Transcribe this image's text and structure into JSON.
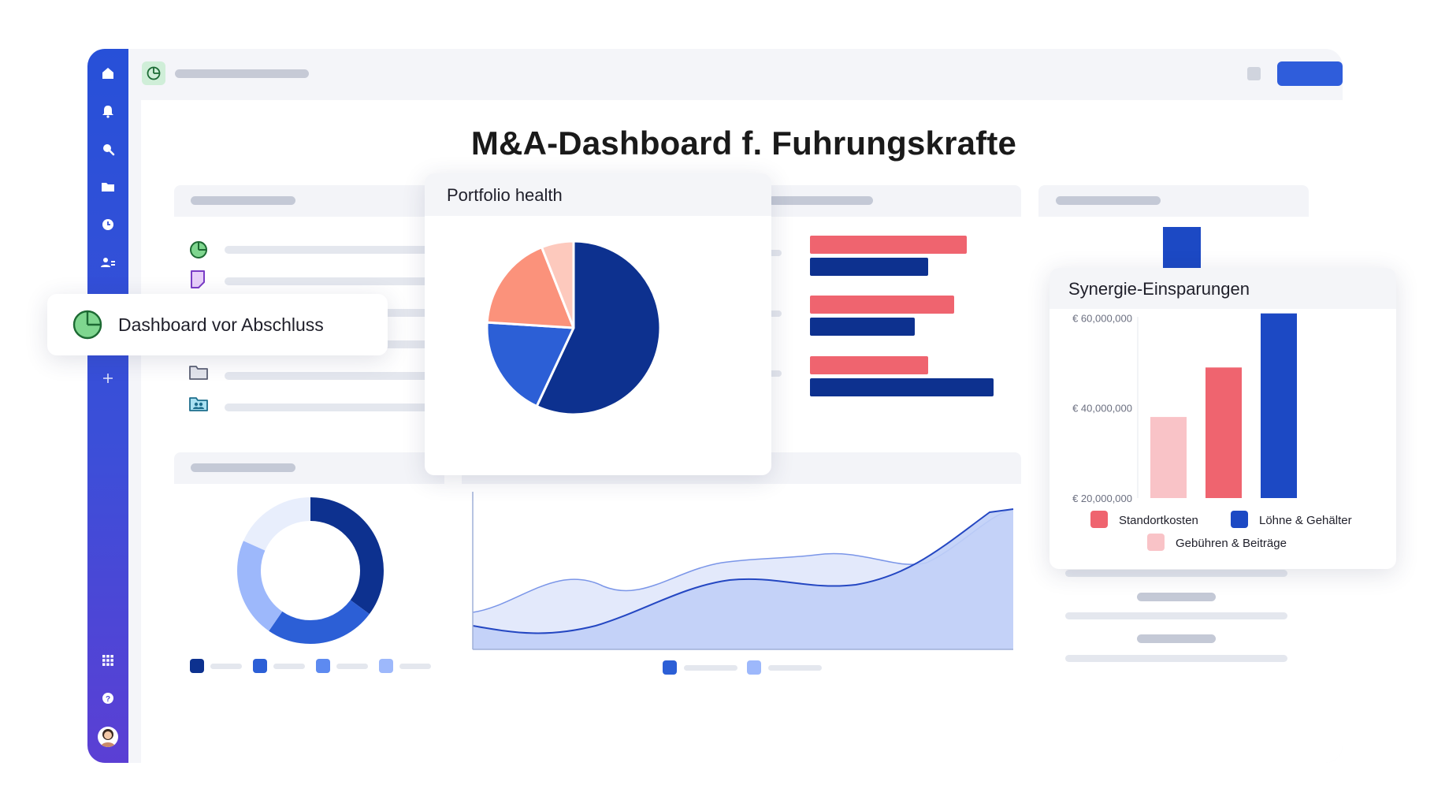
{
  "app": {
    "title": "M&A-Dashboard f. Fuhrungskrafte"
  },
  "sidebar": {
    "icons": [
      "home-icon",
      "bell-icon",
      "search-icon",
      "folder-icon",
      "clock-icon",
      "users-icon"
    ],
    "bottom_icons": [
      "apps-grid-icon",
      "help-icon",
      "avatar"
    ]
  },
  "tooltip": {
    "label": "Dashboard vor Abschluss",
    "icon": "pie-chart-icon"
  },
  "portfolio_card": {
    "title": "Portfolio health",
    "chart_data": {
      "type": "pie",
      "values": [
        57,
        19,
        18,
        6
      ],
      "colors": [
        "#0d318f",
        "#2c5fd6",
        "#fb927b",
        "#fdc9bd"
      ]
    }
  },
  "synergy_card": {
    "title": "Synergie-Einsparungen",
    "chart_data": {
      "type": "bar",
      "categories": [
        "Gebühren & Beiträge",
        "Standortkosten",
        "Löhne & Gehälter"
      ],
      "values": [
        38000000,
        49000000,
        61000000
      ],
      "colors": [
        "#f9c3c7",
        "#ef646f",
        "#1c49c4"
      ],
      "ylim": [
        20000000,
        62000000
      ],
      "yticks": [
        "€ 60,000,000",
        "€ 40,000,000",
        "€ 20,000,000"
      ],
      "legend": [
        "Standortkosten",
        "Löhne & Gehälter",
        "Gebühren & Beiträge"
      ]
    }
  },
  "colors": {
    "sidebar_top": "#2750d8",
    "sidebar_bottom": "#5b3fd4",
    "accent": "#2f5ddb",
    "red": "#ef646f",
    "navy": "#0d318f"
  }
}
